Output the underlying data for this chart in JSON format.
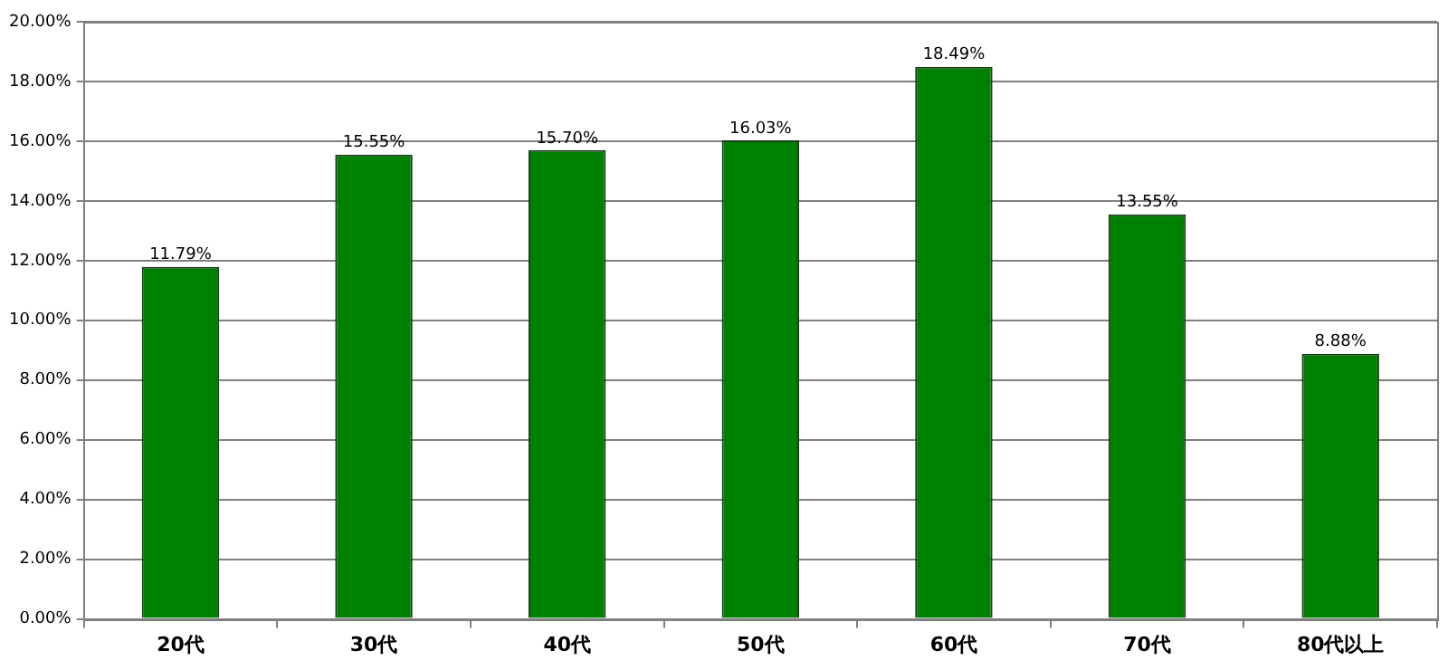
{
  "chart_data": {
    "type": "bar",
    "categories": [
      "20代",
      "30代",
      "40代",
      "50代",
      "60代",
      "70代",
      "80代以上"
    ],
    "values": [
      11.79,
      15.55,
      15.7,
      16.03,
      18.49,
      13.55,
      8.88
    ],
    "value_labels": [
      "11.79%",
      "15.55%",
      "15.70%",
      "16.03%",
      "18.49%",
      "13.55%",
      "8.88%"
    ],
    "color": "#008000",
    "ylim": [
      0,
      20
    ],
    "yticks": [
      {
        "value": 0,
        "label": "0.00%"
      },
      {
        "value": 2,
        "label": "2.00%"
      },
      {
        "value": 4,
        "label": "4.00%"
      },
      {
        "value": 6,
        "label": "6.00%"
      },
      {
        "value": 8,
        "label": "8.00%"
      },
      {
        "value": 10,
        "label": "10.00%"
      },
      {
        "value": 12,
        "label": "12.00%"
      },
      {
        "value": 14,
        "label": "14.00%"
      },
      {
        "value": 16,
        "label": "16.00%"
      },
      {
        "value": 18,
        "label": "18.00%"
      },
      {
        "value": 20,
        "label": "20.00%"
      }
    ],
    "grid": "y",
    "legend": false
  }
}
